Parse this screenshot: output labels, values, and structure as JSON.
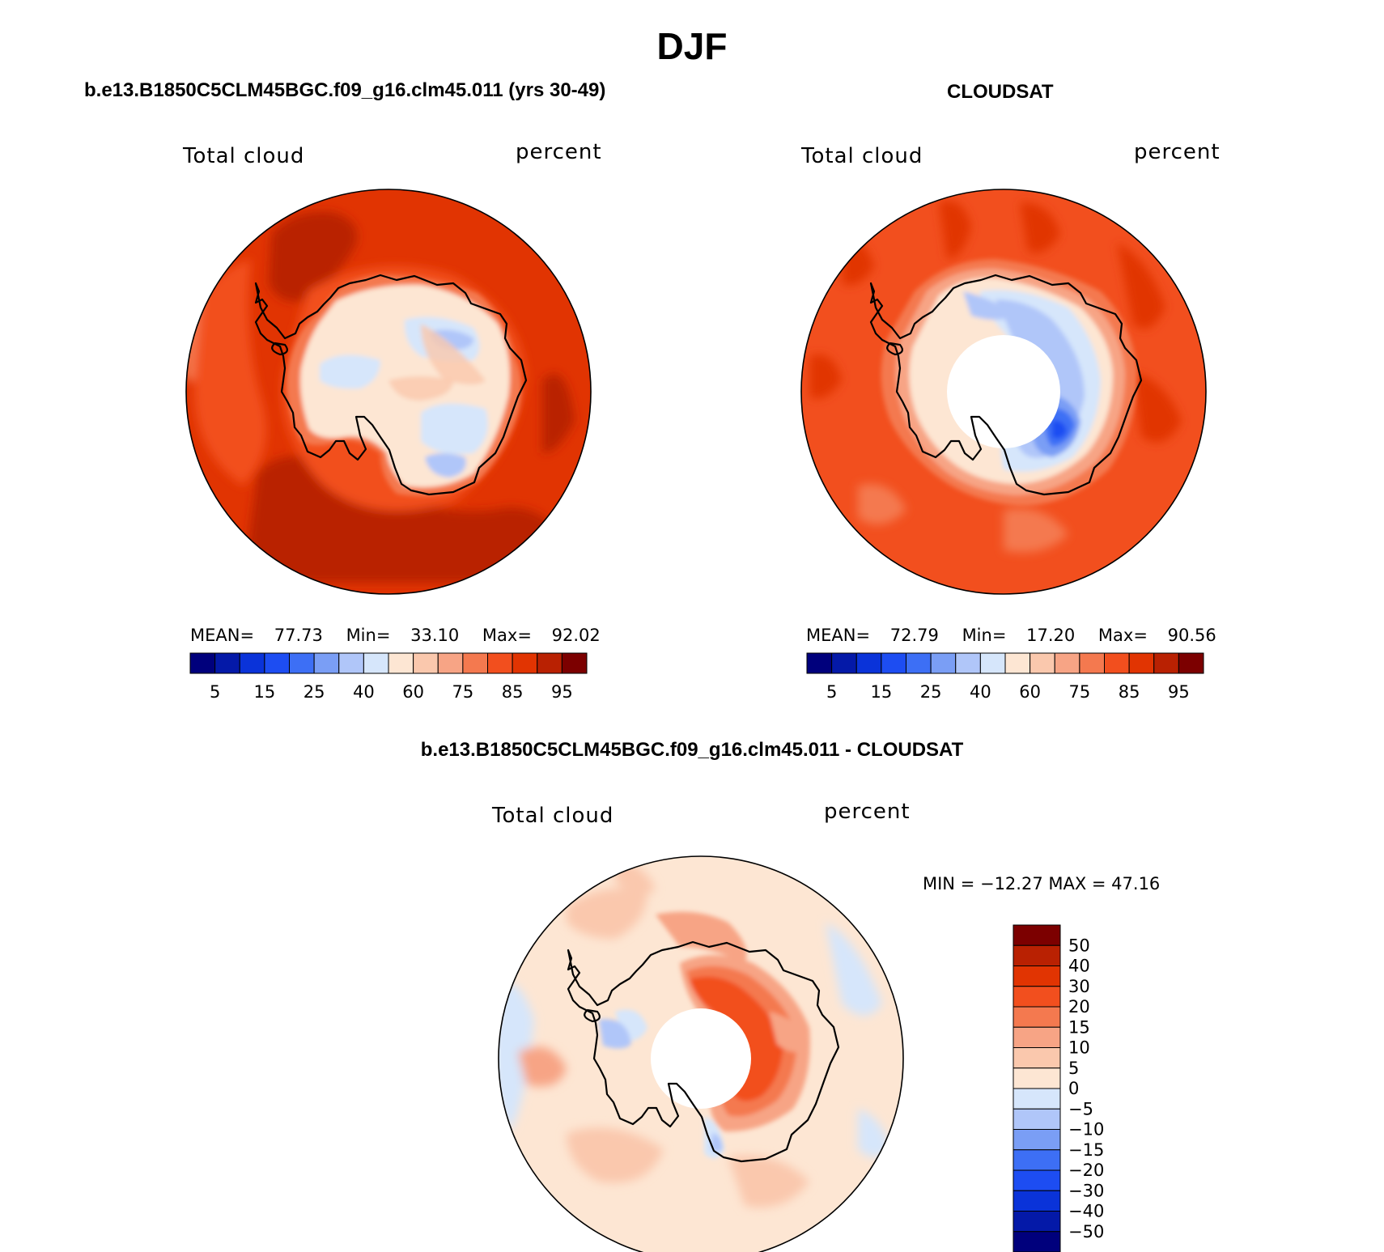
{
  "figure": {
    "title": "DJF",
    "diff_title": "b.e13.B1850C5CLM45BGC.f09_g16.clm45.011 - CLOUDSAT"
  },
  "panels": [
    {
      "id": "model",
      "title": "b.e13.B1850C5CLM45BGC.f09_g16.clm45.011 (yrs 30-49)",
      "left_label": "Total cloud",
      "right_label": "percent",
      "stats": {
        "mean_label": "MEAN=",
        "mean": "77.73",
        "min_label": "Min=",
        "min": "33.10",
        "max_label": "Max=",
        "max": "92.02"
      }
    },
    {
      "id": "obs",
      "title": "CLOUDSAT",
      "left_label": "Total cloud",
      "right_label": "percent",
      "stats": {
        "mean_label": "MEAN=",
        "mean": "72.79",
        "min_label": "Min=",
        "min": "17.20",
        "max_label": "Max=",
        "max": "90.56"
      }
    },
    {
      "id": "diff",
      "left_label": "Total cloud",
      "right_label": "percent",
      "stats_text": "MIN = −12.27 MAX =  47.16"
    }
  ],
  "chart_data": [
    {
      "type": "heatmap",
      "projection": "south-polar-stereographic",
      "field": "Total cloud",
      "units": "percent",
      "colorbar": {
        "orientation": "horizontal",
        "colors": [
          "#00007c",
          "#0419a8",
          "#0a33d9",
          "#1d4df2",
          "#3d6ff5",
          "#7a9ef5",
          "#b0c6f9",
          "#d6e6fb",
          "#fde6d3",
          "#fac8ad",
          "#f7a485",
          "#f4794f",
          "#f24f1e",
          "#e13402",
          "#b92102",
          "#7c0000"
        ],
        "tick_labels": [
          "5",
          "15",
          "25",
          "40",
          "60",
          "75",
          "85",
          "95"
        ]
      },
      "mean": 77.73,
      "min": 33.1,
      "max": 92.02
    },
    {
      "type": "heatmap",
      "projection": "south-polar-stereographic",
      "field": "Total cloud",
      "units": "percent",
      "colorbar": {
        "orientation": "horizontal",
        "colors": [
          "#00007c",
          "#0419a8",
          "#0a33d9",
          "#1d4df2",
          "#3d6ff5",
          "#7a9ef5",
          "#b0c6f9",
          "#d6e6fb",
          "#fde6d3",
          "#fac8ad",
          "#f7a485",
          "#f4794f",
          "#f24f1e",
          "#e13402",
          "#b92102",
          "#7c0000"
        ],
        "tick_labels": [
          "5",
          "15",
          "25",
          "40",
          "60",
          "75",
          "85",
          "95"
        ]
      },
      "mean": 72.79,
      "min": 17.2,
      "max": 90.56
    },
    {
      "type": "heatmap",
      "projection": "south-polar-stereographic",
      "field": "Total cloud",
      "units": "percent",
      "colorbar": {
        "orientation": "vertical",
        "colors": [
          "#7c0000",
          "#b92102",
          "#e13402",
          "#f24f1e",
          "#f4794f",
          "#f7a485",
          "#fac8ad",
          "#fde6d3",
          "#d6e6fb",
          "#b0c6f9",
          "#7a9ef5",
          "#3d6ff5",
          "#1d4df2",
          "#0a33d9",
          "#0419a8",
          "#00007c"
        ],
        "tick_labels": [
          "50",
          "40",
          "30",
          "20",
          "15",
          "10",
          "5",
          "0",
          "−5",
          "−10",
          "−15",
          "−20",
          "−30",
          "−40",
          "−50"
        ]
      },
      "min": -12.27,
      "max": 47.16
    }
  ]
}
